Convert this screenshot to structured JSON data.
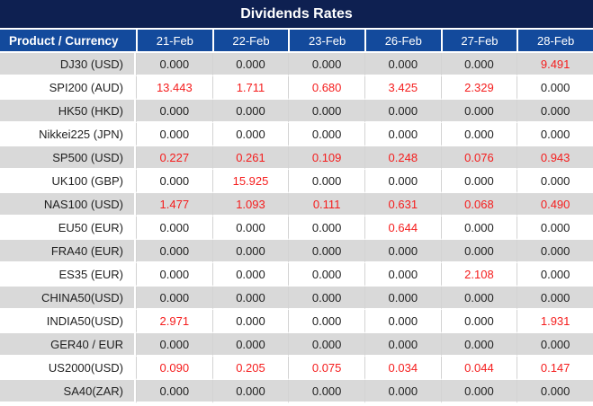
{
  "header": {
    "title": "Dividends Rates"
  },
  "table": {
    "product_column_header": "Product / Currency",
    "date_columns": [
      "21-Feb",
      "22-Feb",
      "23-Feb",
      "26-Feb",
      "27-Feb",
      "28-Feb"
    ],
    "rows": [
      {
        "product": "DJ30 (USD)",
        "values": [
          "0.000",
          "0.000",
          "0.000",
          "0.000",
          "0.000",
          "9.491"
        ],
        "highlighted": [
          false,
          false,
          false,
          false,
          false,
          true
        ]
      },
      {
        "product": "SPI200 (AUD)",
        "values": [
          "13.443",
          "1.711",
          "0.680",
          "3.425",
          "2.329",
          "0.000"
        ],
        "highlighted": [
          true,
          true,
          true,
          true,
          true,
          false
        ]
      },
      {
        "product": "HK50 (HKD)",
        "values": [
          "0.000",
          "0.000",
          "0.000",
          "0.000",
          "0.000",
          "0.000"
        ],
        "highlighted": [
          false,
          false,
          false,
          false,
          false,
          false
        ]
      },
      {
        "product": "Nikkei225 (JPN)",
        "values": [
          "0.000",
          "0.000",
          "0.000",
          "0.000",
          "0.000",
          "0.000"
        ],
        "highlighted": [
          false,
          false,
          false,
          false,
          false,
          false
        ]
      },
      {
        "product": "SP500 (USD)",
        "values": [
          "0.227",
          "0.261",
          "0.109",
          "0.248",
          "0.076",
          "0.943"
        ],
        "highlighted": [
          true,
          true,
          true,
          true,
          true,
          true
        ]
      },
      {
        "product": "UK100 (GBP)",
        "values": [
          "0.000",
          "15.925",
          "0.000",
          "0.000",
          "0.000",
          "0.000"
        ],
        "highlighted": [
          false,
          true,
          false,
          false,
          false,
          false
        ]
      },
      {
        "product": "NAS100 (USD)",
        "values": [
          "1.477",
          "1.093",
          "0.111",
          "0.631",
          "0.068",
          "0.490"
        ],
        "highlighted": [
          true,
          true,
          true,
          true,
          true,
          true
        ]
      },
      {
        "product": "EU50 (EUR)",
        "values": [
          "0.000",
          "0.000",
          "0.000",
          "0.644",
          "0.000",
          "0.000"
        ],
        "highlighted": [
          false,
          false,
          false,
          true,
          false,
          false
        ]
      },
      {
        "product": "FRA40 (EUR)",
        "values": [
          "0.000",
          "0.000",
          "0.000",
          "0.000",
          "0.000",
          "0.000"
        ],
        "highlighted": [
          false,
          false,
          false,
          false,
          false,
          false
        ]
      },
      {
        "product": "ES35 (EUR)",
        "values": [
          "0.000",
          "0.000",
          "0.000",
          "0.000",
          "2.108",
          "0.000"
        ],
        "highlighted": [
          false,
          false,
          false,
          false,
          true,
          false
        ]
      },
      {
        "product": "CHINA50(USD)",
        "values": [
          "0.000",
          "0.000",
          "0.000",
          "0.000",
          "0.000",
          "0.000"
        ],
        "highlighted": [
          false,
          false,
          false,
          false,
          false,
          false
        ]
      },
      {
        "product": "INDIA50(USD)",
        "values": [
          "2.971",
          "0.000",
          "0.000",
          "0.000",
          "0.000",
          "1.931"
        ],
        "highlighted": [
          true,
          false,
          false,
          false,
          false,
          true
        ]
      },
      {
        "product": "GER40 / EUR",
        "values": [
          "0.000",
          "0.000",
          "0.000",
          "0.000",
          "0.000",
          "0.000"
        ],
        "highlighted": [
          false,
          false,
          false,
          false,
          false,
          false
        ]
      },
      {
        "product": "US2000(USD)",
        "values": [
          "0.090",
          "0.205",
          "0.075",
          "0.034",
          "0.044",
          "0.147"
        ],
        "highlighted": [
          true,
          true,
          true,
          true,
          true,
          true
        ]
      },
      {
        "product": "SA40(ZAR)",
        "values": [
          "0.000",
          "0.000",
          "0.000",
          "0.000",
          "0.000",
          "0.000"
        ],
        "highlighted": [
          false,
          false,
          false,
          false,
          false,
          false
        ]
      }
    ]
  },
  "colors": {
    "title_bar_bg": "#0e2051",
    "header_row_bg": "#134a9c",
    "stripe_row_bg": "#d9d9d9",
    "value_text": "#1f1f1f",
    "highlight_red": "#f51d1d",
    "cell_border": "#d3d3d3"
  }
}
